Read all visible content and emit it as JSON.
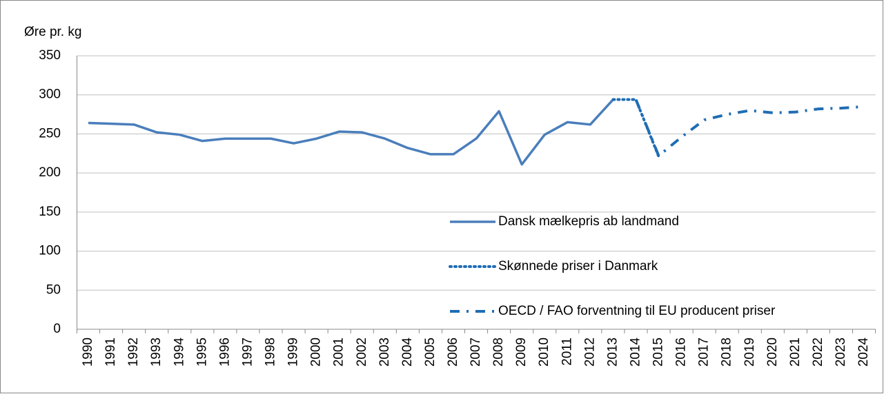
{
  "chart_data": {
    "type": "line",
    "y_label": "Øre pr. kg",
    "categories": [
      "1990",
      "1991",
      "1992",
      "1993",
      "1994",
      "1995",
      "1996",
      "1997",
      "1998",
      "1999",
      "2000",
      "2001",
      "2002",
      "2003",
      "2004",
      "2005",
      "2006",
      "2007",
      "2008",
      "2009",
      "2010",
      "2011",
      "2012",
      "2013",
      "2014",
      "2015",
      "2016",
      "2017",
      "2018",
      "2019",
      "2020",
      "2021",
      "2022",
      "2023",
      "2024"
    ],
    "series": [
      {
        "name": "Dansk mælkepris ab landmand",
        "color": "#4a7ebb",
        "style": "solid",
        "values": [
          264,
          263,
          262,
          252,
          249,
          241,
          244,
          244,
          244,
          238,
          244,
          253,
          252,
          244,
          232,
          224,
          224,
          244,
          279,
          211,
          249,
          265,
          262,
          294,
          null,
          null,
          null,
          null,
          null,
          null,
          null,
          null,
          null,
          null,
          null
        ]
      },
      {
        "name": "Skønnede priser i Danmark",
        "color": "#1f6db4",
        "style": "dotted",
        "values": [
          null,
          null,
          null,
          null,
          null,
          null,
          null,
          null,
          null,
          null,
          null,
          null,
          null,
          null,
          null,
          null,
          null,
          null,
          null,
          null,
          null,
          null,
          null,
          294,
          294,
          221,
          null,
          null,
          null,
          null,
          null,
          null,
          null,
          null,
          null
        ]
      },
      {
        "name": "OECD / FAO forventning til EU producent priser",
        "color": "#1f6db4",
        "style": "dashdot",
        "values": [
          null,
          null,
          null,
          null,
          null,
          null,
          null,
          null,
          null,
          null,
          null,
          null,
          null,
          null,
          null,
          null,
          null,
          null,
          null,
          null,
          null,
          null,
          null,
          null,
          294,
          222,
          246,
          268,
          275,
          280,
          277,
          278,
          282,
          283,
          285
        ]
      }
    ],
    "ylim": [
      0,
      350
    ],
    "yticks": [
      0,
      50,
      100,
      150,
      200,
      250,
      300,
      350
    ],
    "grid": true
  }
}
